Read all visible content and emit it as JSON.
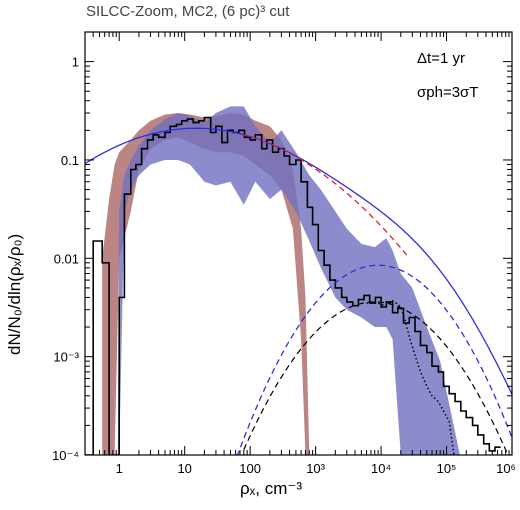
{
  "chart_data": {
    "type": "line",
    "title": "SILCC-Zoom, MC2, (6 pc)³ cut",
    "xlabel": "ρₓ, cm⁻³",
    "ylabel": "dN/N₀/dln(ρₓ/ρ₀)",
    "xscale": "log",
    "yscale": "log",
    "xlim": [
      0.3,
      1000000
    ],
    "ylim": [
      0.0001,
      2
    ],
    "x_ticks": [
      "1",
      "10",
      "100",
      "10³",
      "10⁴",
      "10⁵",
      "10⁶"
    ],
    "y_ticks": [
      "10⁻⁴",
      "10⁻³",
      "0.01",
      "0.1",
      "1"
    ],
    "annotations": [
      "Δt=1 yr",
      "σph=3σT"
    ],
    "colors": {
      "red_band": "#b07070",
      "blue_band": "#6f6fbf",
      "blue_curve": "#2d2de0",
      "red_dashed": "#e02020",
      "black": "#000000"
    },
    "bands": [
      {
        "color": "red",
        "x": [
          0.55,
          0.7,
          0.85,
          1.0,
          1.5,
          2,
          3,
          5,
          8,
          12,
          20,
          30,
          50,
          80,
          120,
          200,
          300,
          450,
          600,
          700,
          800
        ],
        "upper": [
          0.01,
          0.04,
          0.09,
          0.12,
          0.16,
          0.2,
          0.25,
          0.29,
          0.3,
          0.29,
          0.27,
          0.28,
          0.3,
          0.29,
          0.25,
          0.22,
          0.16,
          0.08,
          0.02,
          0.004,
          0.0001
        ],
        "lower": [
          0.0001,
          0.0001,
          0.0001,
          0.01,
          0.03,
          0.08,
          0.13,
          0.16,
          0.17,
          0.15,
          0.13,
          0.12,
          0.12,
          0.11,
          0.09,
          0.07,
          0.05,
          0.02,
          0.0015,
          0.0001,
          0.0001
        ]
      },
      {
        "color": "blue",
        "x": [
          0.95,
          1.0,
          1.2,
          1.5,
          2,
          3,
          5,
          8,
          12,
          20,
          30,
          50,
          80,
          120,
          200,
          300,
          500,
          800,
          1200,
          2000,
          3000,
          5000,
          8000,
          12000,
          15000,
          20000,
          30000,
          50000,
          80000,
          120000,
          160000,
          200000
        ],
        "upper": [
          0.0001,
          0.03,
          0.07,
          0.1,
          0.14,
          0.2,
          0.26,
          0.3,
          0.28,
          0.24,
          0.3,
          0.35,
          0.35,
          0.22,
          0.15,
          0.2,
          0.12,
          0.07,
          0.05,
          0.03,
          0.02,
          0.014,
          0.013,
          0.016,
          0.012,
          0.007,
          0.005,
          0.002,
          0.0009,
          0.00025,
          0.0001,
          0.0001
        ],
        "lower": [
          0.0001,
          0.0001,
          0.03,
          0.05,
          0.07,
          0.09,
          0.1,
          0.1,
          0.09,
          0.06,
          0.055,
          0.06,
          0.035,
          0.06,
          0.04,
          0.05,
          0.03,
          0.015,
          0.008,
          0.004,
          0.003,
          0.0025,
          0.002,
          0.002,
          0.0015,
          0.0001,
          0.0001,
          0.0001,
          0.0001,
          0.0001,
          0.0001,
          0.0001
        ]
      }
    ],
    "series": [
      {
        "kind": "step",
        "style": "solid-black",
        "x_edges": [
          0.3,
          0.4,
          0.55,
          0.7,
          0.85,
          1.0,
          1.2,
          1.5,
          1.8,
          2.2,
          2.7,
          3.3,
          4.0,
          5.0,
          6.0,
          7.5,
          9.0,
          11,
          13.5,
          16.5,
          20,
          25,
          30,
          37,
          45,
          55,
          67,
          82,
          100,
          120,
          150,
          180,
          220,
          270,
          330,
          400,
          500,
          600,
          750,
          900,
          1100,
          1350,
          1650,
          2000,
          2500,
          3000,
          3700,
          4500,
          5500,
          6700,
          8200,
          10000,
          12000,
          15000,
          18000,
          22000,
          27000,
          33000,
          40000,
          50000,
          60000,
          75000,
          90000,
          110000,
          135000,
          165000,
          200000,
          250000,
          300000,
          370000,
          450000,
          550000,
          670000
        ],
        "y": [
          0.0001,
          0.015,
          0.009,
          0.0001,
          0.0001,
          0.004,
          0.045,
          0.08,
          0.09,
          0.13,
          0.16,
          0.18,
          0.17,
          0.19,
          0.22,
          0.23,
          0.25,
          0.26,
          0.24,
          0.25,
          0.27,
          0.19,
          0.22,
          0.15,
          0.2,
          0.19,
          0.2,
          0.17,
          0.16,
          0.18,
          0.13,
          0.16,
          0.12,
          0.13,
          0.11,
          0.09,
          0.1,
          0.06,
          0.033,
          0.022,
          0.012,
          0.0085,
          0.006,
          0.005,
          0.004,
          0.0036,
          0.0033,
          0.0038,
          0.0042,
          0.0035,
          0.004,
          0.0032,
          0.0036,
          0.0028,
          0.0031,
          0.0022,
          0.0025,
          0.0018,
          0.0013,
          0.0011,
          0.0008,
          0.0007,
          0.0005,
          0.00042,
          0.00035,
          0.00028,
          0.00024,
          0.0002,
          0.00016,
          0.00013,
          0.00011,
          0.00012
        ]
      },
      {
        "kind": "line",
        "style": "dotted-black",
        "x": [
          6000,
          8000,
          10000,
          12000,
          15000,
          17000,
          20000,
          23000,
          27000,
          32000,
          40000,
          50000,
          60000,
          75000,
          90000,
          110000,
          130000
        ],
        "y": [
          0.0035,
          0.0036,
          0.0034,
          0.0033,
          0.0037,
          0.0035,
          0.0032,
          0.0024,
          0.0016,
          0.0011,
          0.0007,
          0.0005,
          0.0004,
          0.00035,
          0.00028,
          0.00022,
          0.0001
        ]
      },
      {
        "kind": "lognormal",
        "style": "solid-blue",
        "components": [
          {
            "amp": 0.21,
            "peak_x": 15,
            "width_dex": 1.32
          },
          {
            "amp": 0.0085,
            "peak_x": 9000,
            "width_dex": 0.72
          }
        ],
        "x_range": [
          0.3,
          1000000
        ]
      },
      {
        "kind": "lognormal",
        "style": "dashed-red",
        "components": [
          {
            "amp": 0.21,
            "peak_x": 15,
            "width_dex": 1.32
          }
        ],
        "x_range": [
          80,
          25000
        ]
      },
      {
        "kind": "lognormal",
        "style": "dashed-blue",
        "components": [
          {
            "amp": 0.0085,
            "peak_x": 9000,
            "width_dex": 0.72
          }
        ],
        "x_range": [
          60,
          1000000
        ]
      },
      {
        "kind": "lognormal",
        "style": "dashed-black",
        "components": [
          {
            "amp": 0.0036,
            "peak_x": 8000,
            "width_dex": 0.76
          }
        ],
        "x_range": [
          80,
          1000000
        ]
      }
    ]
  }
}
